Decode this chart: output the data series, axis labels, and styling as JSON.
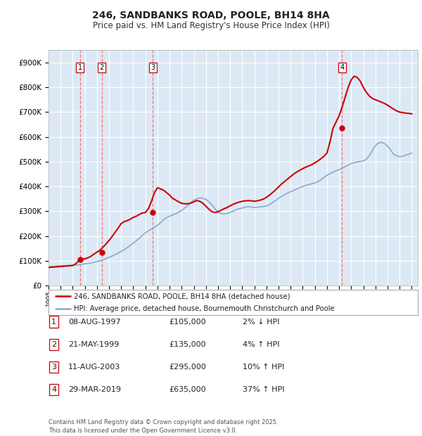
{
  "title": "246, SANDBANKS ROAD, POOLE, BH14 8HA",
  "subtitle": "Price paid vs. HM Land Registry's House Price Index (HPI)",
  "background_color": "#ffffff",
  "plot_bg_color": "#dce9f5",
  "grid_color": "#ffffff",
  "ylim": [
    0,
    950000
  ],
  "yticks": [
    0,
    100000,
    200000,
    300000,
    400000,
    500000,
    600000,
    700000,
    800000,
    900000
  ],
  "ytick_labels": [
    "£0",
    "£100K",
    "£200K",
    "£300K",
    "£400K",
    "£500K",
    "£600K",
    "£700K",
    "£800K",
    "£900K"
  ],
  "sale_dates": [
    1997.6,
    1999.4,
    2003.6,
    2019.25
  ],
  "sale_prices": [
    105000,
    135000,
    295000,
    635000
  ],
  "sale_labels": [
    "1",
    "2",
    "3",
    "4"
  ],
  "vline_color": "#ff6666",
  "dot_color": "#cc0000",
  "sale_line_color": "#cc0000",
  "hpi_line_color": "#88aacc",
  "legend_sale_label": "246, SANDBANKS ROAD, POOLE, BH14 8HA (detached house)",
  "legend_hpi_label": "HPI: Average price, detached house, Bournemouth Christchurch and Poole",
  "table_rows": [
    [
      "1",
      "08-AUG-1997",
      "£105,000",
      "2% ↓ HPI"
    ],
    [
      "2",
      "21-MAY-1999",
      "£135,000",
      "4% ↑ HPI"
    ],
    [
      "3",
      "11-AUG-2003",
      "£295,000",
      "10% ↑ HPI"
    ],
    [
      "4",
      "29-MAR-2019",
      "£635,000",
      "37% ↑ HPI"
    ]
  ],
  "footer": "Contains HM Land Registry data © Crown copyright and database right 2025.\nThis data is licensed under the Open Government Licence v3.0.",
  "hpi_years": [
    1995,
    1995.25,
    1995.5,
    1995.75,
    1996,
    1996.25,
    1996.5,
    1996.75,
    1997,
    1997.25,
    1997.5,
    1997.75,
    1998,
    1998.25,
    1998.5,
    1998.75,
    1999,
    1999.25,
    1999.5,
    1999.75,
    2000,
    2000.25,
    2000.5,
    2000.75,
    2001,
    2001.25,
    2001.5,
    2001.75,
    2002,
    2002.25,
    2002.5,
    2002.75,
    2003,
    2003.25,
    2003.5,
    2003.75,
    2004,
    2004.25,
    2004.5,
    2004.75,
    2005,
    2005.25,
    2005.5,
    2005.75,
    2006,
    2006.25,
    2006.5,
    2006.75,
    2007,
    2007.25,
    2007.5,
    2007.75,
    2008,
    2008.25,
    2008.5,
    2008.75,
    2009,
    2009.25,
    2009.5,
    2009.75,
    2010,
    2010.25,
    2010.5,
    2010.75,
    2011,
    2011.25,
    2011.5,
    2011.75,
    2012,
    2012.25,
    2012.5,
    2012.75,
    2013,
    2013.25,
    2013.5,
    2013.75,
    2014,
    2014.25,
    2014.5,
    2014.75,
    2015,
    2015.25,
    2015.5,
    2015.75,
    2016,
    2016.25,
    2016.5,
    2016.75,
    2017,
    2017.25,
    2017.5,
    2017.75,
    2018,
    2018.25,
    2018.5,
    2018.75,
    2019,
    2019.25,
    2019.5,
    2019.75,
    2020,
    2020.25,
    2020.5,
    2020.75,
    2021,
    2021.25,
    2021.5,
    2021.75,
    2022,
    2022.25,
    2022.5,
    2022.75,
    2023,
    2023.25,
    2023.5,
    2023.75,
    2024,
    2024.25,
    2024.5,
    2024.75,
    2025
  ],
  "hpi_values": [
    76000,
    77000,
    78000,
    79000,
    80000,
    80500,
    81000,
    81500,
    82000,
    82500,
    84000,
    86000,
    88000,
    89000,
    91000,
    94000,
    97000,
    100000,
    104000,
    109000,
    114000,
    119000,
    125000,
    131000,
    138000,
    145000,
    153000,
    162000,
    171000,
    181000,
    191000,
    202000,
    213000,
    221000,
    228000,
    235000,
    243000,
    254000,
    266000,
    274000,
    280000,
    285000,
    290000,
    296000,
    303000,
    313000,
    323000,
    334000,
    345000,
    350000,
    354000,
    352000,
    348000,
    338000,
    326000,
    310000,
    295000,
    291000,
    289000,
    291000,
    295000,
    300000,
    306000,
    310000,
    313000,
    316000,
    319000,
    317000,
    315000,
    316000,
    318000,
    319000,
    321000,
    327000,
    335000,
    343000,
    352000,
    360000,
    367000,
    373000,
    379000,
    384000,
    390000,
    395000,
    400000,
    404000,
    408000,
    411000,
    414000,
    420000,
    427000,
    436000,
    445000,
    452000,
    458000,
    463000,
    468000,
    473000,
    480000,
    486000,
    492000,
    496000,
    499000,
    501000,
    503000,
    510000,
    525000,
    545000,
    565000,
    575000,
    578000,
    573000,
    563000,
    548000,
    530000,
    524000,
    520000,
    522000,
    526000,
    530000,
    535000
  ],
  "sale_line_years": [
    1995,
    1995.25,
    1995.5,
    1995.75,
    1996,
    1996.25,
    1996.5,
    1996.75,
    1997,
    1997.25,
    1997.5,
    1997.75,
    1998,
    1998.25,
    1998.5,
    1998.75,
    1999,
    1999.25,
    1999.5,
    1999.75,
    2000,
    2000.25,
    2000.5,
    2000.75,
    2001,
    2001.25,
    2001.5,
    2001.75,
    2002,
    2002.25,
    2002.5,
    2002.75,
    2003,
    2003.25,
    2003.5,
    2003.75,
    2004,
    2004.25,
    2004.5,
    2004.75,
    2005,
    2005.25,
    2005.5,
    2005.75,
    2006,
    2006.25,
    2006.5,
    2006.75,
    2007,
    2007.25,
    2007.5,
    2007.75,
    2008,
    2008.25,
    2008.5,
    2008.75,
    2009,
    2009.25,
    2009.5,
    2009.75,
    2010,
    2010.25,
    2010.5,
    2010.75,
    2011,
    2011.25,
    2011.5,
    2011.75,
    2012,
    2012.25,
    2012.5,
    2012.75,
    2013,
    2013.25,
    2013.5,
    2013.75,
    2014,
    2014.25,
    2014.5,
    2014.75,
    2015,
    2015.25,
    2015.5,
    2015.75,
    2016,
    2016.25,
    2016.5,
    2016.75,
    2017,
    2017.25,
    2017.5,
    2017.75,
    2018,
    2018.25,
    2018.5,
    2018.75,
    2019,
    2019.25,
    2019.5,
    2019.75,
    2020,
    2020.25,
    2020.5,
    2020.75,
    2021,
    2021.25,
    2021.5,
    2021.75,
    2022,
    2022.25,
    2022.5,
    2022.75,
    2023,
    2023.25,
    2023.5,
    2023.75,
    2024,
    2024.25,
    2024.5,
    2024.75,
    2025
  ],
  "sale_line_values": [
    73000,
    74000,
    75000,
    76000,
    77000,
    78000,
    79000,
    80000,
    81000,
    88000,
    100000,
    106000,
    108000,
    112000,
    118000,
    127000,
    135000,
    143000,
    155000,
    168000,
    182000,
    198000,
    215000,
    232000,
    250000,
    258000,
    262000,
    268000,
    275000,
    280000,
    287000,
    293000,
    295000,
    310000,
    340000,
    375000,
    395000,
    390000,
    385000,
    375000,
    365000,
    352000,
    345000,
    338000,
    332000,
    330000,
    330000,
    333000,
    338000,
    343000,
    340000,
    332000,
    320000,
    308000,
    298000,
    295000,
    298000,
    304000,
    310000,
    315000,
    322000,
    328000,
    333000,
    337000,
    340000,
    342000,
    343000,
    342000,
    340000,
    342000,
    345000,
    349000,
    356000,
    365000,
    375000,
    386000,
    398000,
    410000,
    420000,
    430000,
    440000,
    450000,
    458000,
    465000,
    472000,
    478000,
    483000,
    488000,
    495000,
    503000,
    512000,
    522000,
    535000,
    580000,
    635000,
    660000,
    685000,
    720000,
    760000,
    800000,
    830000,
    845000,
    840000,
    825000,
    800000,
    780000,
    765000,
    755000,
    750000,
    745000,
    740000,
    735000,
    728000,
    720000,
    712000,
    705000,
    700000,
    698000,
    696000,
    695000,
    693000
  ]
}
